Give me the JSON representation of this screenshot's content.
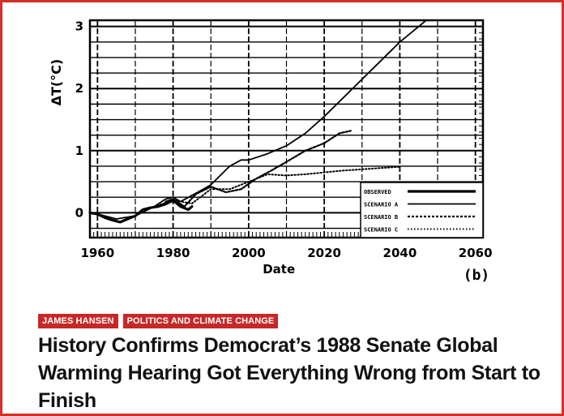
{
  "article": {
    "categories": [
      {
        "label": "JAMES HANSEN"
      },
      {
        "label": "POLITICS AND CLIMATE CHANGE"
      }
    ],
    "headline": "History Confirms Democrat’s 1988 Senate Global Warming Hearing Got Everything Wrong from Start to Finish",
    "accent_color": "#c62828",
    "border_color": "#d3302a"
  },
  "chart_data": {
    "type": "line",
    "title": "",
    "xlabel": "Date",
    "ylabel": "ΔT(°C)",
    "panel_label": "(b)",
    "xlim": [
      1958,
      2062
    ],
    "ylim": [
      -0.4,
      3.1
    ],
    "x_ticks": [
      1960,
      1980,
      2000,
      2020,
      2040,
      2060
    ],
    "y_ticks": [
      0,
      1,
      2,
      3
    ],
    "grid": true,
    "legend_position": "bottom-right",
    "series": [
      {
        "name": "OBSERVED",
        "style": "thick-solid",
        "x": [
          1958,
          1960,
          1962,
          1964,
          1966,
          1968,
          1970,
          1972,
          1974,
          1976,
          1978,
          1980,
          1982,
          1984,
          1985
        ],
        "y": [
          0.0,
          -0.02,
          -0.08,
          -0.12,
          -0.15,
          -0.1,
          -0.05,
          0.05,
          0.08,
          0.1,
          0.14,
          0.2,
          0.1,
          0.05,
          0.1
        ]
      },
      {
        "name": "SCENARIO A",
        "style": "solid",
        "x": [
          1958,
          1960,
          1965,
          1970,
          1975,
          1978,
          1980,
          1982,
          1985,
          1988,
          1990,
          1995,
          1998,
          2000,
          2005,
          2010,
          2015,
          2020,
          2025,
          2030,
          2035,
          2040,
          2045,
          2047
        ],
        "y": [
          0.0,
          -0.02,
          -0.1,
          -0.05,
          0.1,
          0.22,
          0.25,
          0.18,
          0.28,
          0.38,
          0.45,
          0.75,
          0.85,
          0.85,
          0.95,
          1.08,
          1.28,
          1.55,
          1.85,
          2.15,
          2.45,
          2.75,
          3.0,
          3.1
        ]
      },
      {
        "name": "SCENARIO B",
        "style": "dashed",
        "x": [
          1978,
          1980,
          1983,
          1986,
          1990,
          1994,
          1998,
          2002,
          2006,
          2010,
          2015,
          2020,
          2024,
          2027
        ],
        "y": [
          0.18,
          0.22,
          0.1,
          0.3,
          0.42,
          0.33,
          0.38,
          0.55,
          0.68,
          0.82,
          1.0,
          1.12,
          1.28,
          1.32
        ]
      },
      {
        "name": "SCENARIO C",
        "style": "dotted",
        "x": [
          1975,
          1980,
          1985,
          1990,
          1995,
          2000,
          2005,
          2010,
          2015,
          2020,
          2025,
          2030,
          2035,
          2040
        ],
        "y": [
          0.1,
          0.2,
          0.15,
          0.38,
          0.38,
          0.5,
          0.62,
          0.6,
          0.62,
          0.65,
          0.68,
          0.7,
          0.72,
          0.74
        ]
      }
    ]
  }
}
